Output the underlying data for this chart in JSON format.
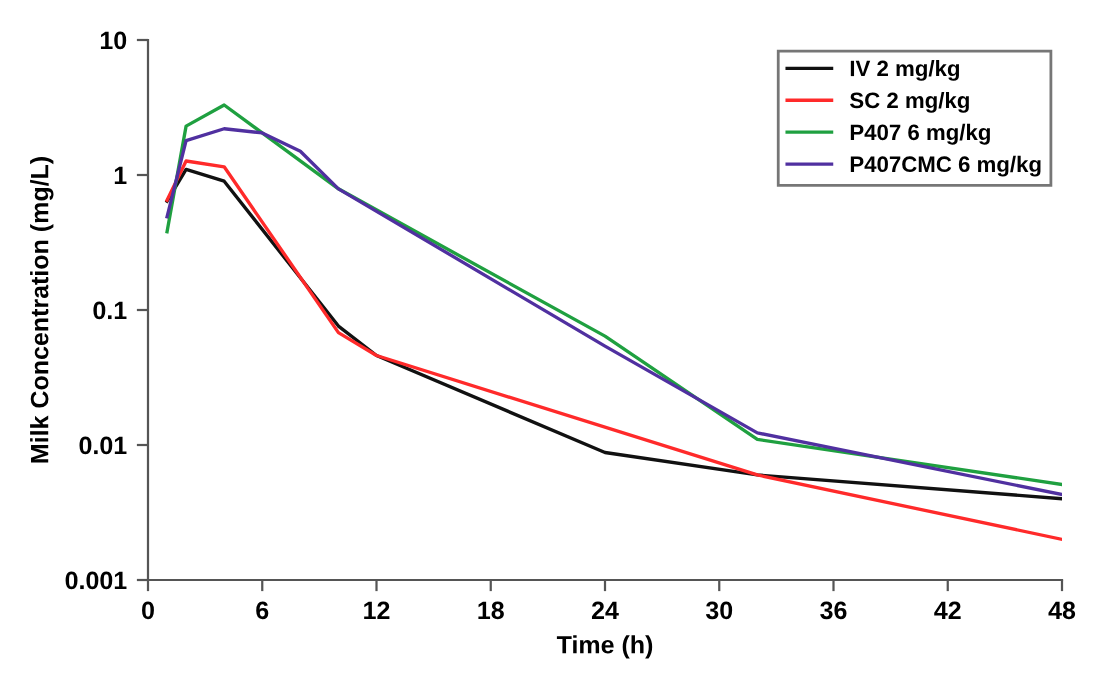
{
  "chart_data": {
    "type": "line",
    "xlabel": "Time (h)",
    "ylabel": "Milk Concentration (mg/L)",
    "log": "y",
    "grid": false,
    "legend": "top right",
    "marker": "none",
    "line_style": "solid",
    "xlim": [
      0,
      48
    ],
    "xticks": [
      0,
      6,
      12,
      18,
      24,
      30,
      36,
      42,
      48
    ],
    "ylim": [
      0.001,
      10
    ],
    "yticks": [
      0.001,
      0.01,
      0.1,
      1,
      10
    ],
    "series": [
      {
        "name": "IV 2 mg/kg",
        "color": "#111111",
        "x": [
          1,
          2,
          4,
          10,
          12,
          24,
          32,
          48
        ],
        "values": [
          0.64,
          1.1,
          0.9,
          0.076,
          0.046,
          0.0088,
          0.006,
          0.004
        ]
      },
      {
        "name": "SC 2 mg/kg",
        "color": "#ff2a2a",
        "x": [
          1,
          2,
          4,
          10,
          12,
          32,
          48
        ],
        "values": [
          0.65,
          1.27,
          1.15,
          0.068,
          0.046,
          0.006,
          0.002
        ]
      },
      {
        "name": "P407 6 mg/kg",
        "color": "#1fa040",
        "x": [
          1,
          2,
          4,
          10,
          24,
          32,
          48
        ],
        "values": [
          0.38,
          2.3,
          3.3,
          0.79,
          0.064,
          0.011,
          0.0051
        ]
      },
      {
        "name": "P407CMC 6 mg/kg",
        "color": "#5030a0",
        "x": [
          1,
          2,
          4,
          6,
          8,
          10,
          24,
          32,
          48
        ],
        "values": [
          0.49,
          1.8,
          2.2,
          2.05,
          1.5,
          0.79,
          0.054,
          0.0123,
          0.0043
        ]
      }
    ]
  }
}
